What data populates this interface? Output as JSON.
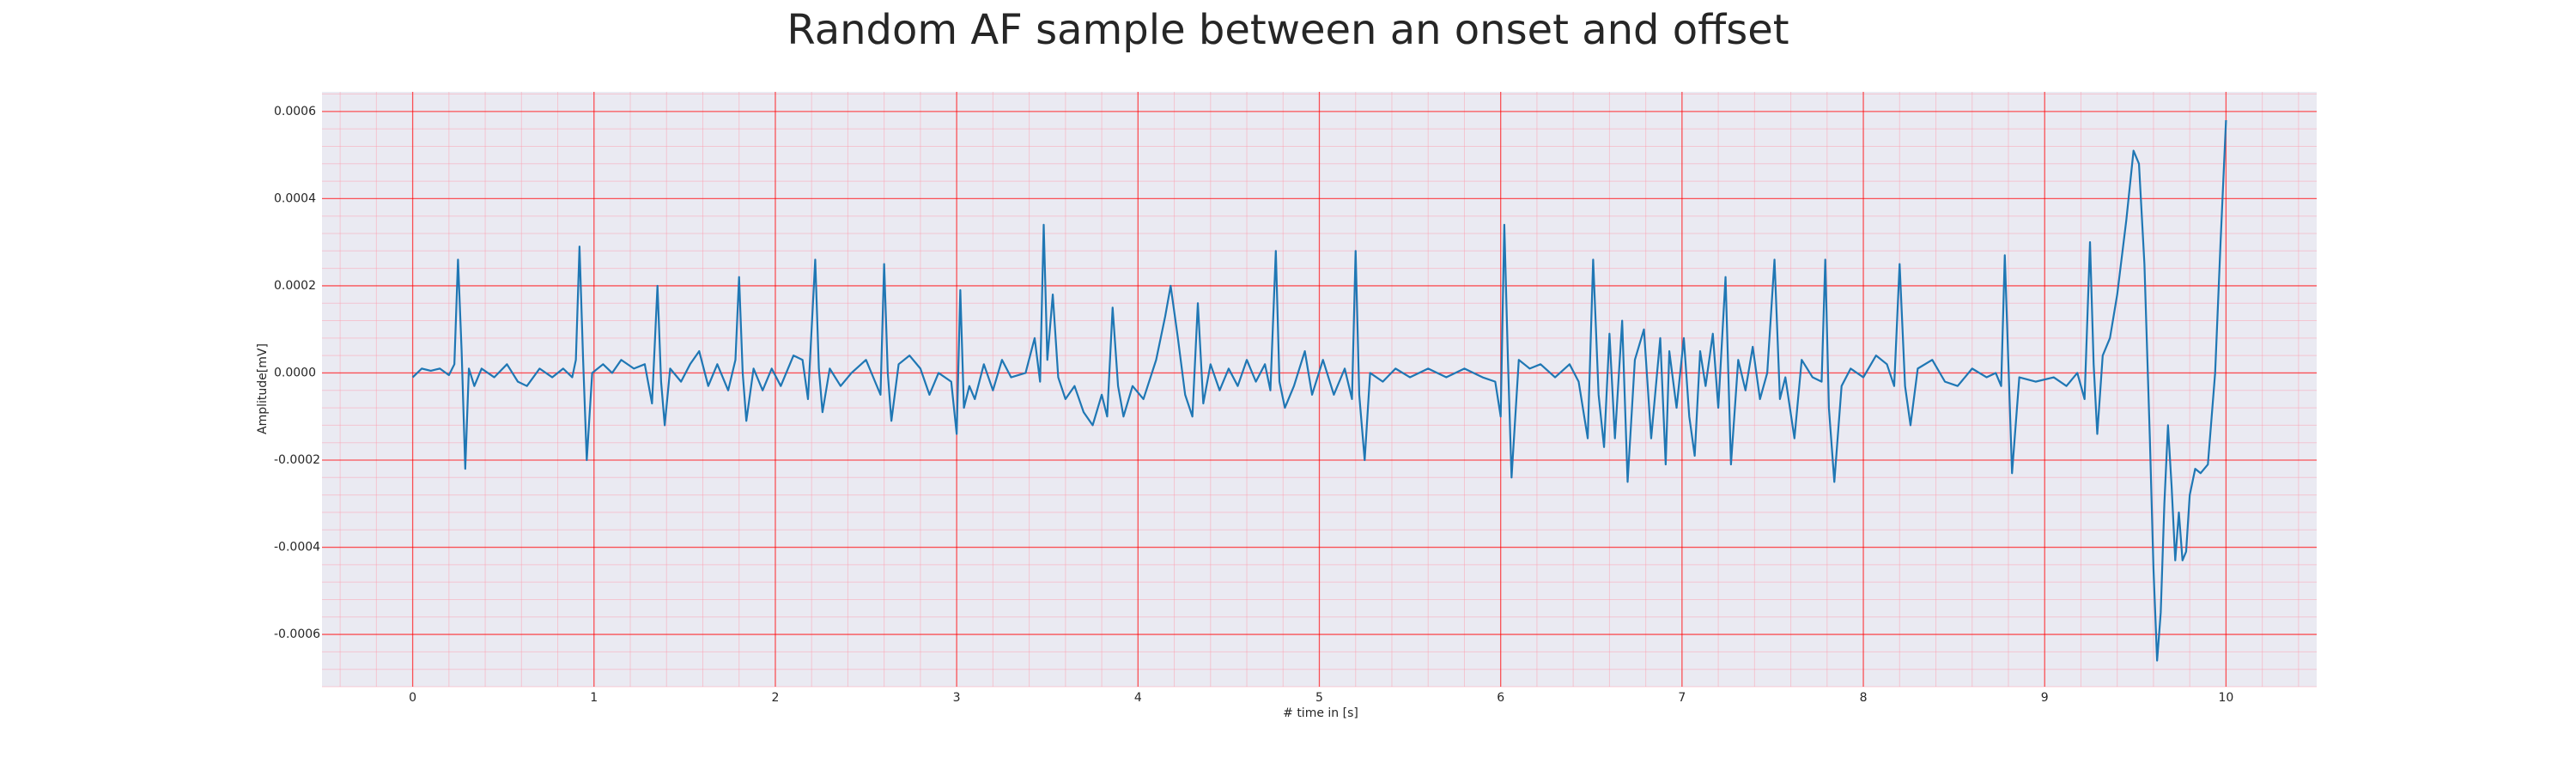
{
  "chart_data": {
    "type": "line",
    "title": "Random AF sample between an onset and offset",
    "xlabel": "# time in [s]",
    "ylabel": "Amplitude[mV]",
    "color": "#1f77b4",
    "grid": true,
    "minor_grid": true,
    "xlim": [
      -0.5,
      10.5
    ],
    "ylim": [
      -0.00072,
      0.000645
    ],
    "xticks": [
      0,
      1,
      2,
      3,
      4,
      5,
      6,
      7,
      8,
      9,
      10
    ],
    "yticks": [
      -0.0006,
      -0.0004,
      -0.0002,
      {
        "value": 0,
        "label": "0.0000"
      },
      0.0002,
      0.0004,
      0.0006
    ],
    "x": [
      0.0,
      0.05,
      0.1,
      0.15,
      0.2,
      0.23,
      0.25,
      0.27,
      0.29,
      0.31,
      0.34,
      0.38,
      0.45,
      0.52,
      0.58,
      0.63,
      0.7,
      0.77,
      0.83,
      0.88,
      0.9,
      0.92,
      0.94,
      0.96,
      0.99,
      1.05,
      1.1,
      1.15,
      1.22,
      1.28,
      1.32,
      1.35,
      1.37,
      1.39,
      1.42,
      1.48,
      1.53,
      1.58,
      1.63,
      1.68,
      1.74,
      1.78,
      1.8,
      1.82,
      1.84,
      1.88,
      1.93,
      1.98,
      2.03,
      2.1,
      2.15,
      2.18,
      2.22,
      2.24,
      2.26,
      2.3,
      2.36,
      2.42,
      2.5,
      2.55,
      2.58,
      2.6,
      2.62,
      2.64,
      2.68,
      2.74,
      2.8,
      2.85,
      2.9,
      2.97,
      3.0,
      3.02,
      3.04,
      3.07,
      3.1,
      3.15,
      3.2,
      3.25,
      3.3,
      3.38,
      3.43,
      3.46,
      3.48,
      3.5,
      3.53,
      3.56,
      3.6,
      3.65,
      3.7,
      3.75,
      3.8,
      3.83,
      3.86,
      3.89,
      3.92,
      3.97,
      4.03,
      4.1,
      4.15,
      4.18,
      4.22,
      4.26,
      4.3,
      4.33,
      4.36,
      4.4,
      4.45,
      4.5,
      4.55,
      4.6,
      4.65,
      4.7,
      4.73,
      4.76,
      4.78,
      4.81,
      4.86,
      4.92,
      4.96,
      5.02,
      5.08,
      5.14,
      5.18,
      5.2,
      5.22,
      5.25,
      5.28,
      5.35,
      5.42,
      5.5,
      5.6,
      5.7,
      5.8,
      5.9,
      5.97,
      6.0,
      6.02,
      6.04,
      6.06,
      6.1,
      6.16,
      6.22,
      6.3,
      6.38,
      6.43,
      6.48,
      6.51,
      6.54,
      6.57,
      6.6,
      6.63,
      6.67,
      6.7,
      6.74,
      6.79,
      6.83,
      6.88,
      6.91,
      6.93,
      6.97,
      7.01,
      7.04,
      7.07,
      7.1,
      7.13,
      7.17,
      7.2,
      7.24,
      7.27,
      7.31,
      7.35,
      7.39,
      7.43,
      7.47,
      7.51,
      7.54,
      7.57,
      7.62,
      7.66,
      7.72,
      7.77,
      7.79,
      7.81,
      7.84,
      7.88,
      7.93,
      8.0,
      8.07,
      8.13,
      8.17,
      8.2,
      8.23,
      8.26,
      8.3,
      8.38,
      8.45,
      8.52,
      8.6,
      8.68,
      8.73,
      8.76,
      8.78,
      8.8,
      8.82,
      8.86,
      8.95,
      9.05,
      9.12,
      9.18,
      9.22,
      9.25,
      9.27,
      9.29,
      9.32,
      9.36,
      9.4,
      9.45,
      9.49,
      9.52,
      9.55,
      9.58,
      9.6,
      9.62,
      9.64,
      9.66,
      9.68,
      9.7,
      9.72,
      9.74,
      9.76,
      9.78,
      9.8,
      9.83,
      9.86,
      9.9,
      9.94,
      9.97,
      10.0
    ],
    "values": [
      -1e-05,
      1e-05,
      5e-06,
      1e-05,
      -5e-06,
      2e-05,
      0.00026,
      5e-05,
      -0.00022,
      1e-05,
      -3e-05,
      1e-05,
      -1e-05,
      2e-05,
      -2e-05,
      -3e-05,
      1e-05,
      -1e-05,
      1e-05,
      -1e-05,
      3e-05,
      0.00029,
      3e-05,
      -0.0002,
      0.0,
      2e-05,
      0.0,
      3e-05,
      1e-05,
      2e-05,
      -7e-05,
      0.0002,
      -2e-05,
      -0.00012,
      1e-05,
      -2e-05,
      2e-05,
      5e-05,
      -3e-05,
      2e-05,
      -4e-05,
      3e-05,
      0.00022,
      0.0,
      -0.00011,
      1e-05,
      -4e-05,
      1e-05,
      -3e-05,
      4e-05,
      3e-05,
      -6e-05,
      0.00026,
      1e-05,
      -9e-05,
      1e-05,
      -3e-05,
      0.0,
      3e-05,
      -2e-05,
      -5e-05,
      0.00025,
      0.0,
      -0.00011,
      2e-05,
      4e-05,
      1e-05,
      -5e-05,
      0.0,
      -2e-05,
      -0.00014,
      0.00019,
      -8e-05,
      -3e-05,
      -6e-05,
      2e-05,
      -4e-05,
      3e-05,
      -1e-05,
      0.0,
      8e-05,
      -2e-05,
      0.00034,
      3e-05,
      0.00018,
      -1e-05,
      -6e-05,
      -3e-05,
      -9e-05,
      -0.00012,
      -5e-05,
      -0.0001,
      0.00015,
      -3e-05,
      -0.0001,
      -3e-05,
      -6e-05,
      3e-05,
      0.00013,
      0.0002,
      8e-05,
      -5e-05,
      -0.0001,
      0.00016,
      -7e-05,
      2e-05,
      -4e-05,
      1e-05,
      -3e-05,
      3e-05,
      -2e-05,
      2e-05,
      -4e-05,
      0.00028,
      -2e-05,
      -8e-05,
      -3e-05,
      5e-05,
      -5e-05,
      3e-05,
      -5e-05,
      1e-05,
      -6e-05,
      0.00028,
      -5e-05,
      -0.0002,
      0.0,
      -2e-05,
      1e-05,
      -1e-05,
      1e-05,
      -1e-05,
      1e-05,
      -1e-05,
      -2e-05,
      -0.0001,
      0.00034,
      3e-05,
      -0.00024,
      3e-05,
      1e-05,
      2e-05,
      -1e-05,
      2e-05,
      -2e-05,
      -0.00015,
      0.00026,
      -5e-05,
      -0.00017,
      9e-05,
      -0.00015,
      0.00012,
      -0.00025,
      3e-05,
      0.0001,
      -0.00015,
      8e-05,
      -0.00021,
      5e-05,
      -8e-05,
      8e-05,
      -0.0001,
      -0.00019,
      5e-05,
      -3e-05,
      9e-05,
      -8e-05,
      0.00022,
      -0.00021,
      3e-05,
      -4e-05,
      6e-05,
      -6e-05,
      0.0,
      0.00026,
      -6e-05,
      -1e-05,
      -0.00015,
      3e-05,
      -1e-05,
      -2e-05,
      0.00026,
      -8e-05,
      -0.00025,
      -3e-05,
      1e-05,
      -1e-05,
      4e-05,
      2e-05,
      -3e-05,
      0.00025,
      -3e-05,
      -0.00012,
      1e-05,
      3e-05,
      -2e-05,
      -3e-05,
      1e-05,
      -1e-05,
      0.0,
      -3e-05,
      0.00027,
      2e-05,
      -0.00023,
      -1e-05,
      -2e-05,
      -1e-05,
      -3e-05,
      0.0,
      -6e-05,
      0.0003,
      2e-05,
      -0.00014,
      4e-05,
      8e-05,
      0.00018,
      0.00035,
      0.00051,
      0.00048,
      0.00025,
      -0.00015,
      -0.00045,
      -0.00066,
      -0.00055,
      -0.0003,
      -0.00012,
      -0.00026,
      -0.00043,
      -0.00032,
      -0.00043,
      -0.00041,
      -0.00028,
      -0.00022,
      -0.00023,
      -0.00021,
      0.0,
      0.0003,
      0.00058
    ]
  }
}
